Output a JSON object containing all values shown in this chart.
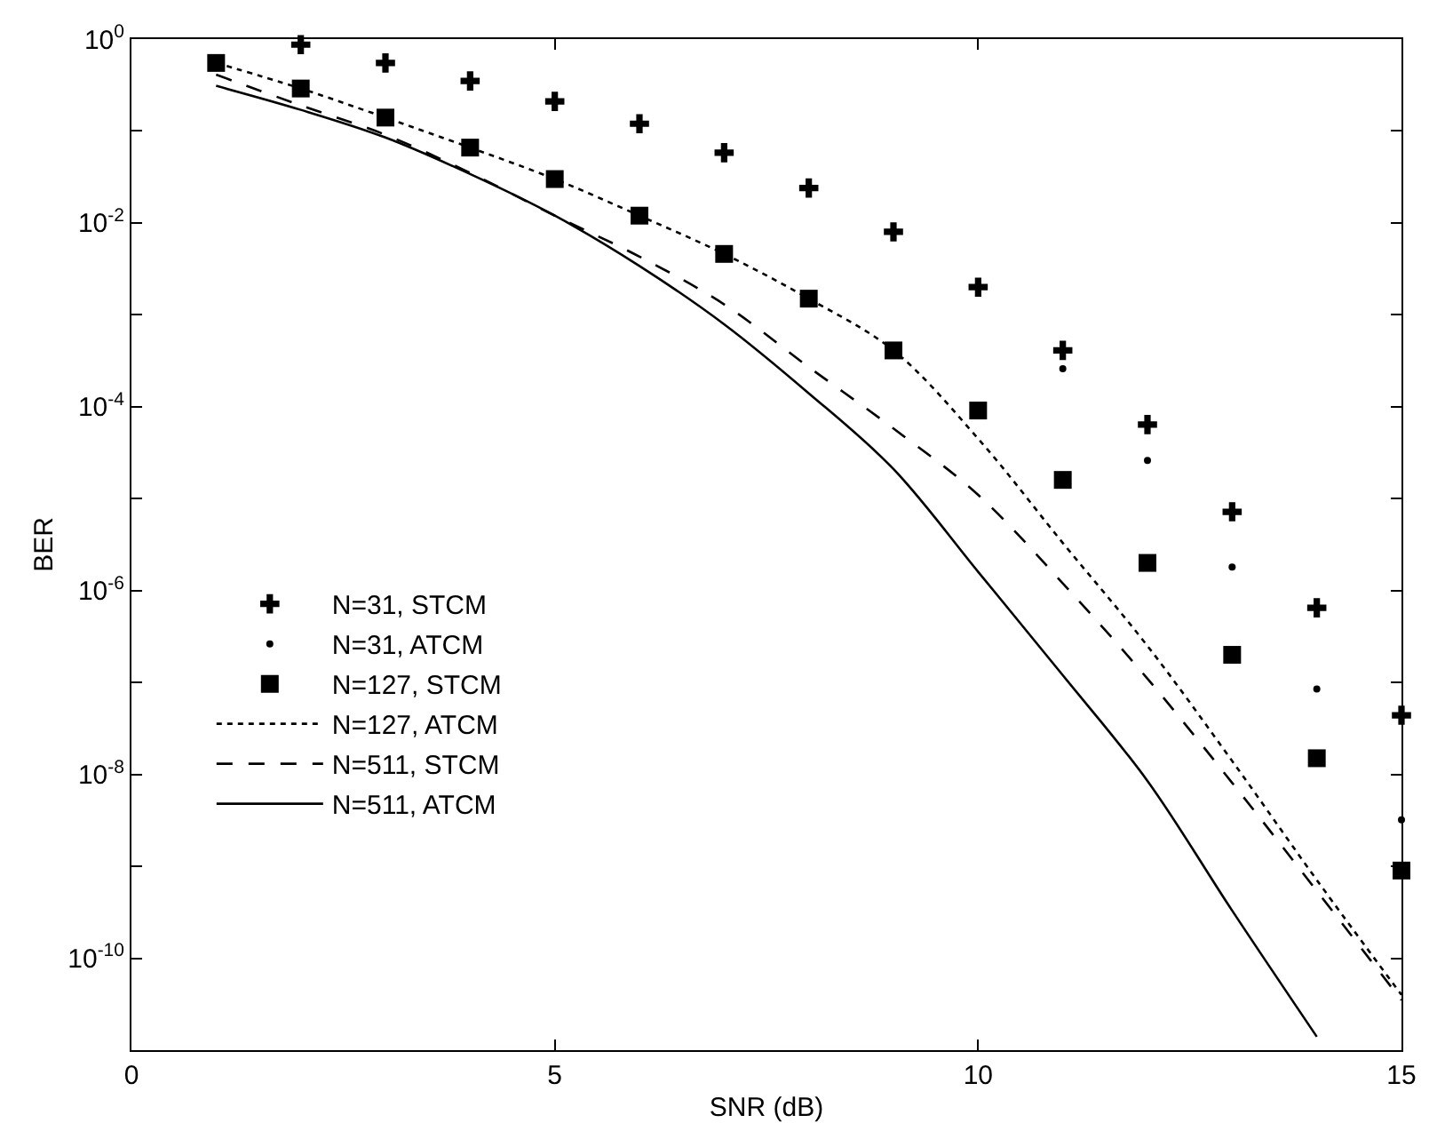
{
  "chart_data": {
    "type": "line",
    "xlabel": "SNR (dB)",
    "ylabel": "BER",
    "log": "y",
    "legend": "bottom left",
    "xlim": [
      0,
      15
    ],
    "xticks": [
      0,
      5,
      10,
      15
    ],
    "ylim": [
      1e-11,
      1
    ],
    "yticks": [
      {
        "value": 1,
        "label": "10$^{0}$"
      },
      {
        "value": 0.1,
        "label": null
      },
      {
        "value": 0.01,
        "label": "10$^{-2}$"
      },
      {
        "value": 0.001,
        "label": null
      },
      {
        "value": 0.0001,
        "label": "10$^{-4}$"
      },
      {
        "value": 1e-05,
        "label": null
      },
      {
        "value": 1e-06,
        "label": "10$^{-6}$"
      },
      {
        "value": 1e-07,
        "label": null
      },
      {
        "value": 1e-08,
        "label": "10$^{-8}$"
      },
      {
        "value": 1e-09,
        "label": null
      },
      {
        "value": 1e-10,
        "label": "10$^{-10}$"
      },
      {
        "value": 1e-11,
        "label": null
      }
    ],
    "series": [
      {
        "name": "N=31, STCM",
        "type": "scatter",
        "marker": "cross",
        "color": "#000000",
        "x": [
          2,
          3,
          4,
          5,
          6,
          7,
          8,
          9,
          10,
          11,
          12,
          13,
          14,
          15
        ],
        "values": [
          0.87,
          0.55,
          0.35,
          0.21,
          0.12,
          0.058,
          0.024,
          0.008,
          0.002,
          0.00041,
          6.4e-05,
          7.2e-06,
          6.5e-07,
          4.4e-08
        ]
      },
      {
        "name": "N=31, ATCM",
        "type": "scatter",
        "marker": "circle",
        "color": "#000000",
        "x": [
          11,
          12,
          13,
          14,
          15
        ],
        "values": [
          0.00026,
          2.6e-05,
          1.8e-06,
          8.5e-08,
          3.2e-09
        ]
      },
      {
        "name": "N=127, STCM",
        "type": "scatter",
        "marker": "square",
        "color": "#000000",
        "x": [
          1,
          2,
          3,
          4,
          5,
          6,
          7,
          8,
          9,
          10,
          11,
          12,
          13,
          14,
          15
        ],
        "values": [
          0.55,
          0.29,
          0.14,
          0.066,
          0.03,
          0.012,
          0.0046,
          0.0015,
          0.00041,
          9.1e-05,
          1.6e-05,
          2e-06,
          2e-07,
          1.5e-08,
          9e-10
        ]
      },
      {
        "name": "N=127, ATCM",
        "marker": "none",
        "line_style": "dotted",
        "color": "#000000",
        "x": [
          1,
          2,
          3,
          4,
          5,
          6,
          7,
          8,
          9,
          10,
          11,
          12,
          13,
          14,
          15
        ],
        "values": [
          0.55,
          0.29,
          0.14,
          0.066,
          0.03,
          0.012,
          0.0046,
          0.0015,
          0.00041,
          4.5e-05,
          3.3e-06,
          2.5e-07,
          1.4e-08,
          7.1e-10,
          4e-11
        ]
      },
      {
        "name": "N=511, STCM",
        "marker": "none",
        "line_style": "dashed",
        "color": "#000000",
        "x": [
          1,
          2,
          3,
          4,
          5,
          6,
          7,
          8,
          9,
          10,
          11,
          12,
          13,
          14,
          15
        ],
        "values": [
          0.41,
          0.19,
          0.091,
          0.035,
          0.012,
          0.0043,
          0.0013,
          0.00027,
          5.8e-05,
          1.1e-05,
          1.2e-06,
          1.1e-07,
          8.1e-09,
          5.4e-10,
          3.5e-11
        ]
      },
      {
        "name": "N=511, ATCM",
        "marker": "none",
        "line_style": "solid",
        "color": "#000000",
        "x": [
          1,
          2,
          3,
          4,
          5,
          6,
          7,
          8,
          9,
          10,
          11,
          12,
          13,
          14
        ],
        "values": [
          0.31,
          0.17,
          0.085,
          0.034,
          0.012,
          0.0034,
          0.00079,
          0.00014,
          2.1e-05,
          1.6e-06,
          1.2e-07,
          8.5e-09,
          3.3e-10,
          1.4e-11
        ]
      }
    ]
  }
}
